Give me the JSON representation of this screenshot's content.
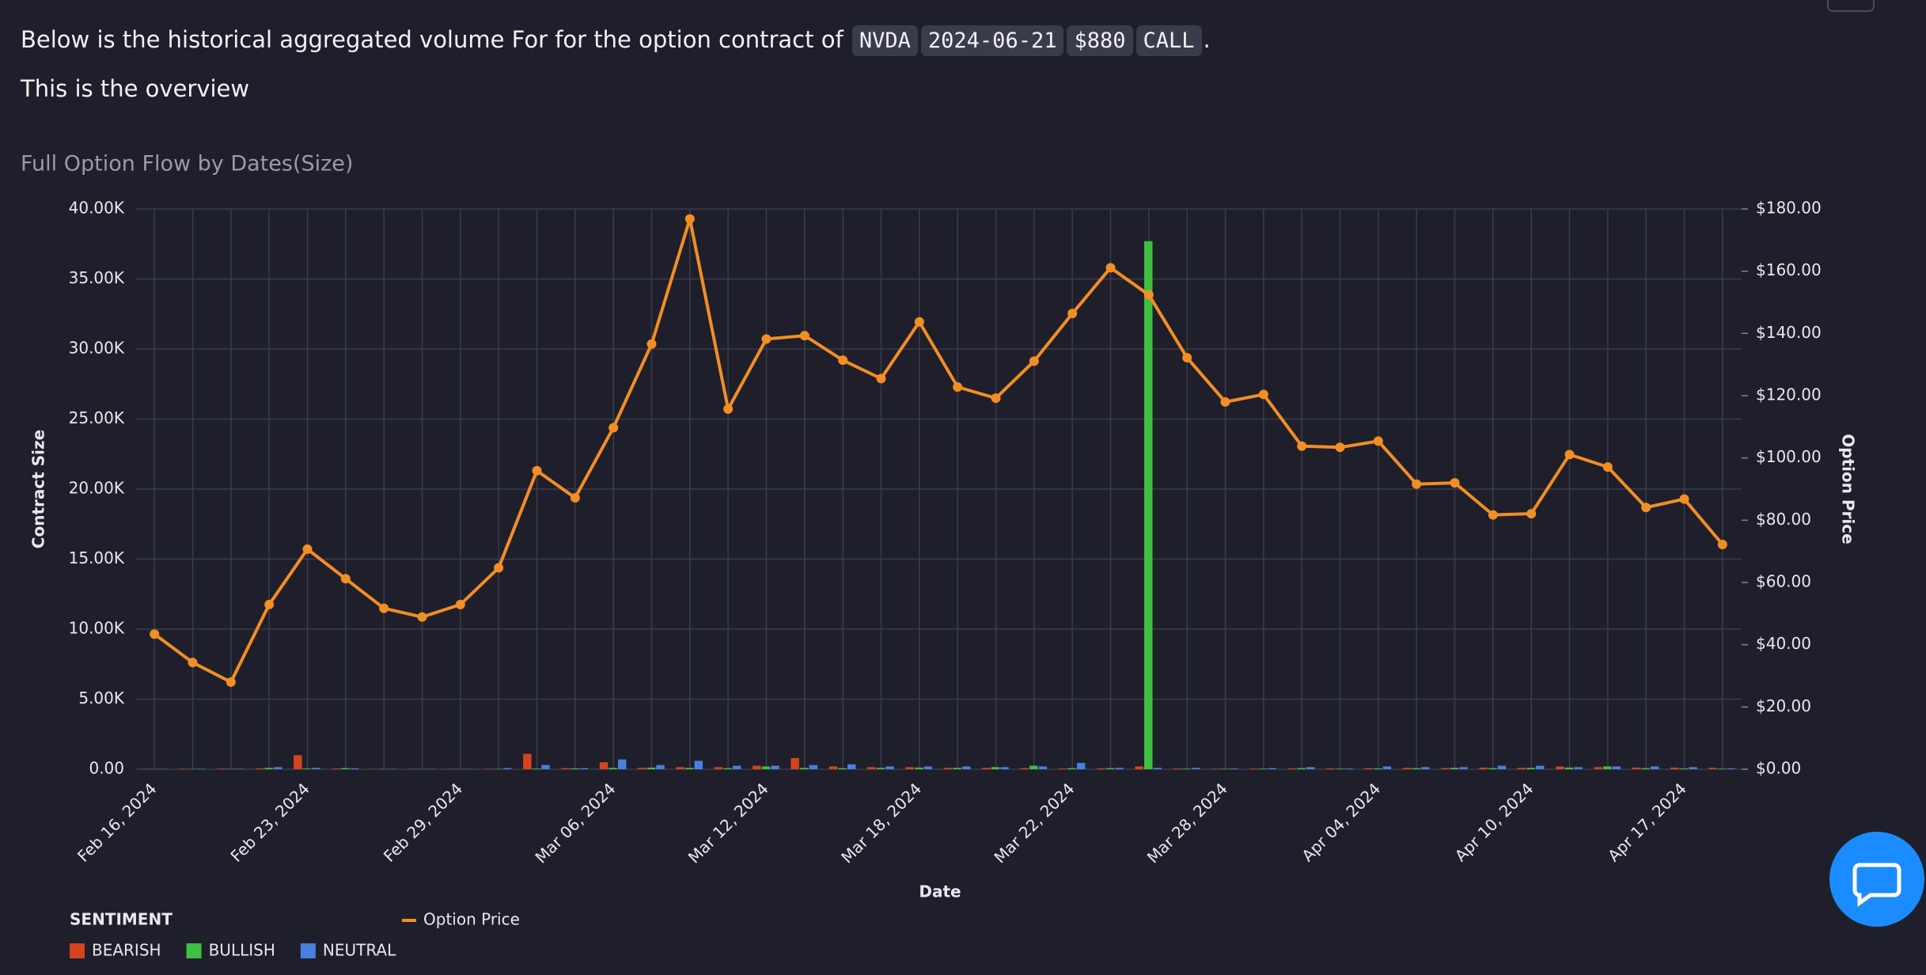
{
  "header": {
    "text_before": "Below is the historical aggregated volume For for the option contract of",
    "chips": [
      "NVDA",
      "2024-06-21",
      "$880",
      "CALL"
    ],
    "text_after": "."
  },
  "overview": "This is the overview",
  "chart_data": {
    "type": "bar",
    "title": "Full Option Flow by Dates(Size)",
    "x_label": "Date",
    "y_label": "Contract Size",
    "y2_label": "Option Price",
    "legend_title": "SENTIMENT",
    "categories": [
      "Feb 16, 2024",
      null,
      null,
      null,
      "Feb 23, 2024",
      null,
      null,
      null,
      "Feb 29, 2024",
      null,
      null,
      null,
      "Mar 06, 2024",
      null,
      null,
      null,
      "Mar 12, 2024",
      null,
      null,
      null,
      "Mar 18, 2024",
      null,
      null,
      null,
      "Mar 22, 2024",
      null,
      null,
      null,
      "Mar 28, 2024",
      null,
      null,
      null,
      "Apr 04, 2024",
      null,
      null,
      null,
      "Apr 10, 2024",
      null,
      null,
      null,
      "Apr 17, 2024",
      null
    ],
    "series": [
      {
        "name": "BEARISH",
        "color": "#d6431f",
        "values": [
          20,
          30,
          40,
          60,
          1000,
          50,
          20,
          20,
          20,
          30,
          1100,
          80,
          500,
          100,
          150,
          150,
          250,
          800,
          200,
          150,
          150,
          100,
          100,
          80,
          50,
          60,
          200,
          50,
          30,
          40,
          60,
          60,
          80,
          100,
          80,
          120,
          100,
          200,
          150,
          120,
          120,
          100
        ]
      },
      {
        "name": "BULLISH",
        "color": "#3fbf3f",
        "values": [
          10,
          20,
          20,
          100,
          50,
          80,
          20,
          10,
          10,
          20,
          50,
          60,
          100,
          120,
          100,
          80,
          200,
          100,
          80,
          100,
          120,
          100,
          150,
          250,
          80,
          80,
          37700,
          40,
          30,
          40,
          80,
          40,
          60,
          80,
          100,
          80,
          100,
          120,
          200,
          80,
          60,
          40
        ]
      },
      {
        "name": "NEUTRAL",
        "color": "#4a7fe0",
        "values": [
          20,
          30,
          30,
          150,
          100,
          60,
          20,
          20,
          20,
          80,
          300,
          80,
          700,
          300,
          600,
          250,
          250,
          300,
          350,
          200,
          200,
          200,
          150,
          200,
          450,
          100,
          100,
          100,
          50,
          80,
          150,
          50,
          200,
          150,
          150,
          250,
          250,
          150,
          200,
          200,
          150,
          60
        ]
      },
      {
        "name": "Option Price",
        "type": "line",
        "axis": "y2",
        "color": "#f28e24",
        "values": [
          43.4,
          34.3,
          28.0,
          52.9,
          70.7,
          61.2,
          51.7,
          48.9,
          52.9,
          64.7,
          95.9,
          87.2,
          109.7,
          136.6,
          176.8,
          115.7,
          138.2,
          139.3,
          131.4,
          125.5,
          143.7,
          122.8,
          119.2,
          131.1,
          146.4,
          161.1,
          152.4,
          132.2,
          118.0,
          120.4,
          103.8,
          103.4,
          105.4,
          91.6,
          92.0,
          81.7,
          82.1,
          101.1,
          97.1,
          84.1,
          86.8,
          72.2
        ]
      }
    ],
    "ylim": [
      0,
      40000
    ],
    "yticks": [
      {
        "value": 0,
        "label": "0.00"
      },
      {
        "value": 5000,
        "label": "5.00K"
      },
      {
        "value": 10000,
        "label": "10.00K"
      },
      {
        "value": 15000,
        "label": "15.00K"
      },
      {
        "value": 20000,
        "label": "20.00K"
      },
      {
        "value": 25000,
        "label": "25.00K"
      },
      {
        "value": 30000,
        "label": "30.00K"
      },
      {
        "value": 35000,
        "label": "35.00K"
      },
      {
        "value": 40000,
        "label": "40.00K"
      }
    ],
    "y2lim": [
      0,
      180
    ],
    "y2ticks": [
      {
        "value": 0,
        "label": "$0.00"
      },
      {
        "value": 20,
        "label": "$20.00"
      },
      {
        "value": 40,
        "label": "$40.00"
      },
      {
        "value": 60,
        "label": "$60.00"
      },
      {
        "value": 80,
        "label": "$80.00"
      },
      {
        "value": 100,
        "label": "$100.00"
      },
      {
        "value": 120,
        "label": "$120.00"
      },
      {
        "value": 140,
        "label": "$140.00"
      },
      {
        "value": 160,
        "label": "$160.00"
      },
      {
        "value": 180,
        "label": "$180.00"
      }
    ],
    "grid": true
  }
}
